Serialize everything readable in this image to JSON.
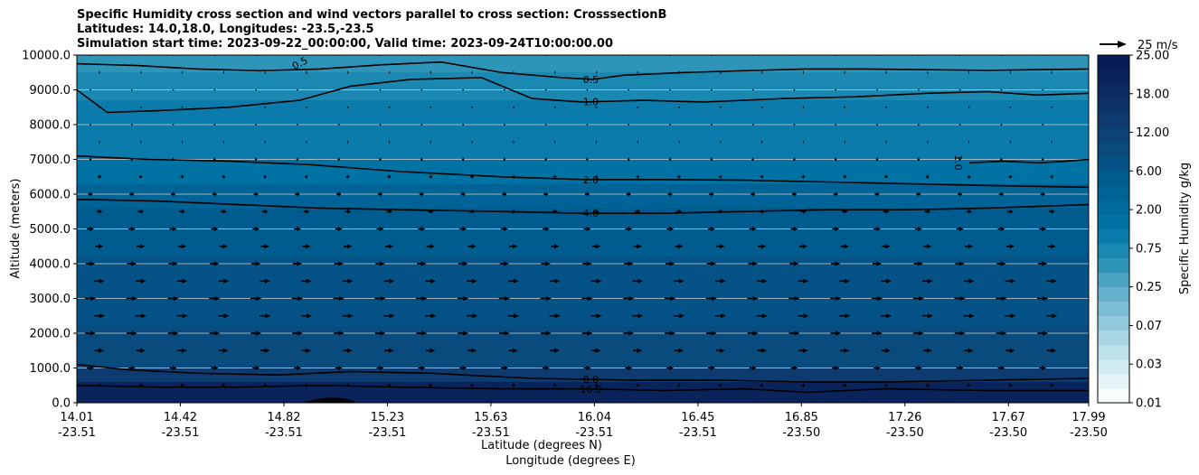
{
  "chart_data": {
    "type": "heatmap",
    "title_lines": [
      "Specific Humidity cross section and wind vectors parallel to cross section: CrosssectionB",
      "Latitudes: 14.0,18.0, Longitudes: -23.5,-23.5",
      "Simulation start time: 2023-09-22_00:00:00, Valid time: 2023-09-24T10:00:00.00"
    ],
    "ylabel": "Altitude (meters)",
    "xlabel_lat": "Latitude (degrees N)",
    "xlabel_lon": "Longitude (degrees E)",
    "ylim": [
      0,
      10000
    ],
    "y_ticks": [
      "0.0",
      "1000.0",
      "2000.0",
      "3000.0",
      "4000.0",
      "5000.0",
      "6000.0",
      "7000.0",
      "8000.0",
      "9000.0",
      "10000.0"
    ],
    "x_ticks": [
      {
        "lat": "14.01",
        "lon": "-23.51"
      },
      {
        "lat": "14.42",
        "lon": "-23.51"
      },
      {
        "lat": "14.82",
        "lon": "-23.51"
      },
      {
        "lat": "15.23",
        "lon": "-23.51"
      },
      {
        "lat": "15.63",
        "lon": "-23.51"
      },
      {
        "lat": "16.04",
        "lon": "-23.51"
      },
      {
        "lat": "16.45",
        "lon": "-23.51"
      },
      {
        "lat": "16.85",
        "lon": "-23.50"
      },
      {
        "lat": "17.26",
        "lon": "-23.50"
      },
      {
        "lat": "17.67",
        "lon": "-23.50"
      },
      {
        "lat": "17.99",
        "lon": "-23.50"
      }
    ],
    "colorbar": {
      "label": "Specific Humidity g/kg",
      "tick_labels": [
        "0.01",
        "0.03",
        "0.07",
        "0.25",
        "0.75",
        "2.00",
        "6.00",
        "12.00",
        "18.00",
        "25.00"
      ],
      "colors": [
        "#f7fcfd",
        "#e5f3f6",
        "#d2ebf0",
        "#bfe2ea",
        "#a9d6e2",
        "#92cadb",
        "#7bbdd2",
        "#63b0ca",
        "#4aa3c1",
        "#2e95b9",
        "#1a88b1",
        "#0a7baa",
        "#0072a4",
        "#006a9d",
        "#006395",
        "#005b8e",
        "#055386",
        "#0a4b7e",
        "#0c4377",
        "#0d3b70",
        "#0d3368",
        "#0c2b62",
        "#0a235b",
        "#081d58"
      ]
    },
    "wind_reference": {
      "label": "25 m/s",
      "speed": 25
    },
    "contours": [
      {
        "level": "0.5",
        "label": "0.5",
        "alt": [
          9750,
          9700,
          9600,
          9550,
          9600,
          9720,
          9800,
          9500,
          9350,
          9300,
          9420,
          9500,
          9550,
          9600,
          9600,
          9580,
          9560,
          9600
        ],
        "pos": [
          0.0,
          0.06,
          0.12,
          0.18,
          0.24,
          0.3,
          0.36,
          0.42,
          0.48,
          0.51,
          0.54,
          0.6,
          0.66,
          0.72,
          0.78,
          0.84,
          0.9,
          1.0
        ]
      },
      {
        "level": "1.0",
        "label": "1.0",
        "alt": [
          9000,
          8350,
          8400,
          8500,
          8700,
          9100,
          9300,
          9350,
          8750,
          8650,
          8700,
          8650,
          8750,
          8800,
          8900,
          8950,
          8850,
          8900
        ],
        "pos": [
          0.0,
          0.03,
          0.08,
          0.15,
          0.22,
          0.27,
          0.33,
          0.4,
          0.45,
          0.5,
          0.56,
          0.62,
          0.7,
          0.77,
          0.84,
          0.9,
          0.95,
          1.0
        ]
      },
      {
        "level": "2.0",
        "label": "2.0",
        "alt": [
          7100,
          7000,
          6950,
          6850,
          6650,
          6500,
          6420,
          6420,
          6400,
          6350,
          6300,
          6250,
          6200
        ],
        "pos": [
          0.0,
          0.07,
          0.15,
          0.23,
          0.32,
          0.42,
          0.5,
          0.58,
          0.66,
          0.74,
          0.82,
          0.9,
          1.0
        ]
      },
      {
        "level": "4.0",
        "label": "4.0",
        "alt": [
          5850,
          5800,
          5700,
          5600,
          5550,
          5500,
          5450,
          5450,
          5500,
          5550,
          5550,
          5600,
          5700
        ],
        "pos": [
          0.0,
          0.08,
          0.16,
          0.24,
          0.32,
          0.42,
          0.5,
          0.58,
          0.66,
          0.74,
          0.82,
          0.9,
          1.0
        ]
      },
      {
        "level": "8.0",
        "label": "8.0",
        "alt": [
          1100,
          950,
          850,
          800,
          900,
          850,
          700,
          650,
          650,
          600,
          600,
          650,
          700
        ],
        "pos": [
          0.0,
          0.05,
          0.12,
          0.2,
          0.27,
          0.35,
          0.45,
          0.55,
          0.64,
          0.72,
          0.8,
          0.9,
          1.0
        ]
      },
      {
        "level": "16.0",
        "label": "16.0",
        "alt": [
          500,
          450,
          450,
          500,
          450,
          400,
          400,
          350,
          400,
          300,
          400,
          350,
          350
        ],
        "pos": [
          0.0,
          0.08,
          0.16,
          0.24,
          0.32,
          0.42,
          0.5,
          0.58,
          0.66,
          0.72,
          0.8,
          0.9,
          1.0
        ]
      }
    ],
    "contour_label_1_0_right": "1.0",
    "terrain_note": "",
    "wind_rows": [
      {
        "alt": 10000,
        "u": 0.5
      },
      {
        "alt": 9500,
        "u": -1
      },
      {
        "alt": 9000,
        "u": 0.5
      },
      {
        "alt": 8500,
        "u": 0.5
      },
      {
        "alt": 8000,
        "u": 0.5
      },
      {
        "alt": 7500,
        "u": 1
      },
      {
        "alt": 7000,
        "u": 2
      },
      {
        "alt": 6500,
        "u": 3
      },
      {
        "alt": 6000,
        "u": 4
      },
      {
        "alt": 5500,
        "u": 5
      },
      {
        "alt": 5000,
        "u": 6
      },
      {
        "alt": 4500,
        "u": 7
      },
      {
        "alt": 4000,
        "u": 8
      },
      {
        "alt": 3500,
        "u": 9
      },
      {
        "alt": 3000,
        "u": 9.5
      },
      {
        "alt": 2500,
        "u": 9.5
      },
      {
        "alt": 2000,
        "u": 9
      },
      {
        "alt": 1500,
        "u": 8
      },
      {
        "alt": 1000,
        "u": 6
      },
      {
        "alt": 500,
        "u": 3
      }
    ]
  }
}
